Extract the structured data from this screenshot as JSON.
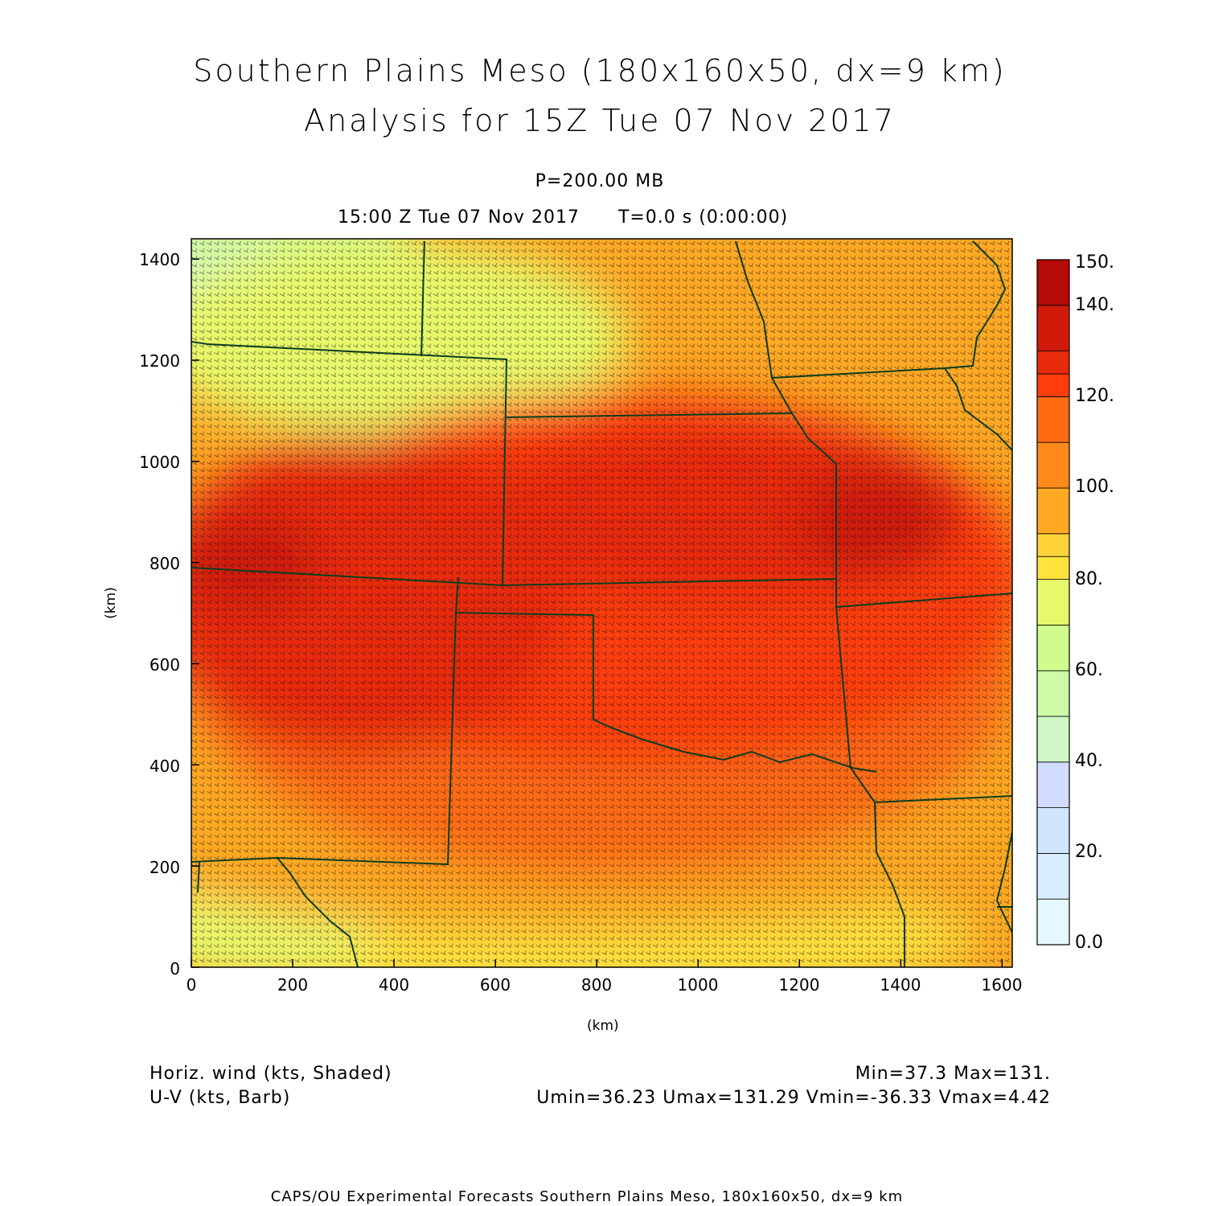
{
  "header": {
    "title_line1": "Southern Plains Meso (180x160x50, dx=9 km)",
    "title_line2": "Analysis for 15Z Tue 07 Nov 2017",
    "level": "P=200.00 MB",
    "valid_time": "15:00 Z Tue 07 Nov 2017",
    "model_time": "T=0.0 s (0:00:00)"
  },
  "axes": {
    "x_label": "(km)",
    "y_label": "(km)",
    "x_ticks": [
      "0",
      "200",
      "400",
      "600",
      "800",
      "1000",
      "1200",
      "1400",
      "1600"
    ],
    "y_ticks": [
      "0",
      "200",
      "400",
      "600",
      "800",
      "1000",
      "1200",
      "1400"
    ],
    "x_range_km": [
      0,
      1620
    ],
    "y_range_km": [
      0,
      1440
    ]
  },
  "colorbar": {
    "labels": [
      "0.0",
      "20.",
      "40.",
      "60.",
      "80.",
      "100.",
      "120.",
      "140.",
      "150."
    ],
    "colors": [
      "#e6f7ff",
      "#d8eeff",
      "#d0e6ff",
      "#d2dcff",
      "#cff7c6",
      "#cdfba6",
      "#cffb8f",
      "#e7f96b",
      "#ffe33f",
      "#ffd23a",
      "#ffa824",
      "#ff8a1a",
      "#ff6a12",
      "#ff3d0b",
      "#e82a0d",
      "#cf1a0a",
      "#b50a05"
    ],
    "boundaries": [
      0,
      10,
      20,
      30,
      40,
      50,
      60,
      70,
      80,
      85,
      90,
      100,
      110,
      120,
      125,
      130,
      140,
      150
    ]
  },
  "map": {
    "border_color": "#0b3d1e",
    "barb_color": "#1a1a1a"
  },
  "footer": {
    "field1": "Horiz. wind (kts, Shaded)",
    "field2": "U-V (kts, Barb)",
    "stats1": "Min=37.3 Max=131.",
    "stats2": "Umin=36.23 Umax=131.29 Vmin=-36.33 Vmax=4.42",
    "credit": "CAPS/OU Experimental Forecasts   Southern Plains Meso, 180x160x50, dx=9 km"
  }
}
